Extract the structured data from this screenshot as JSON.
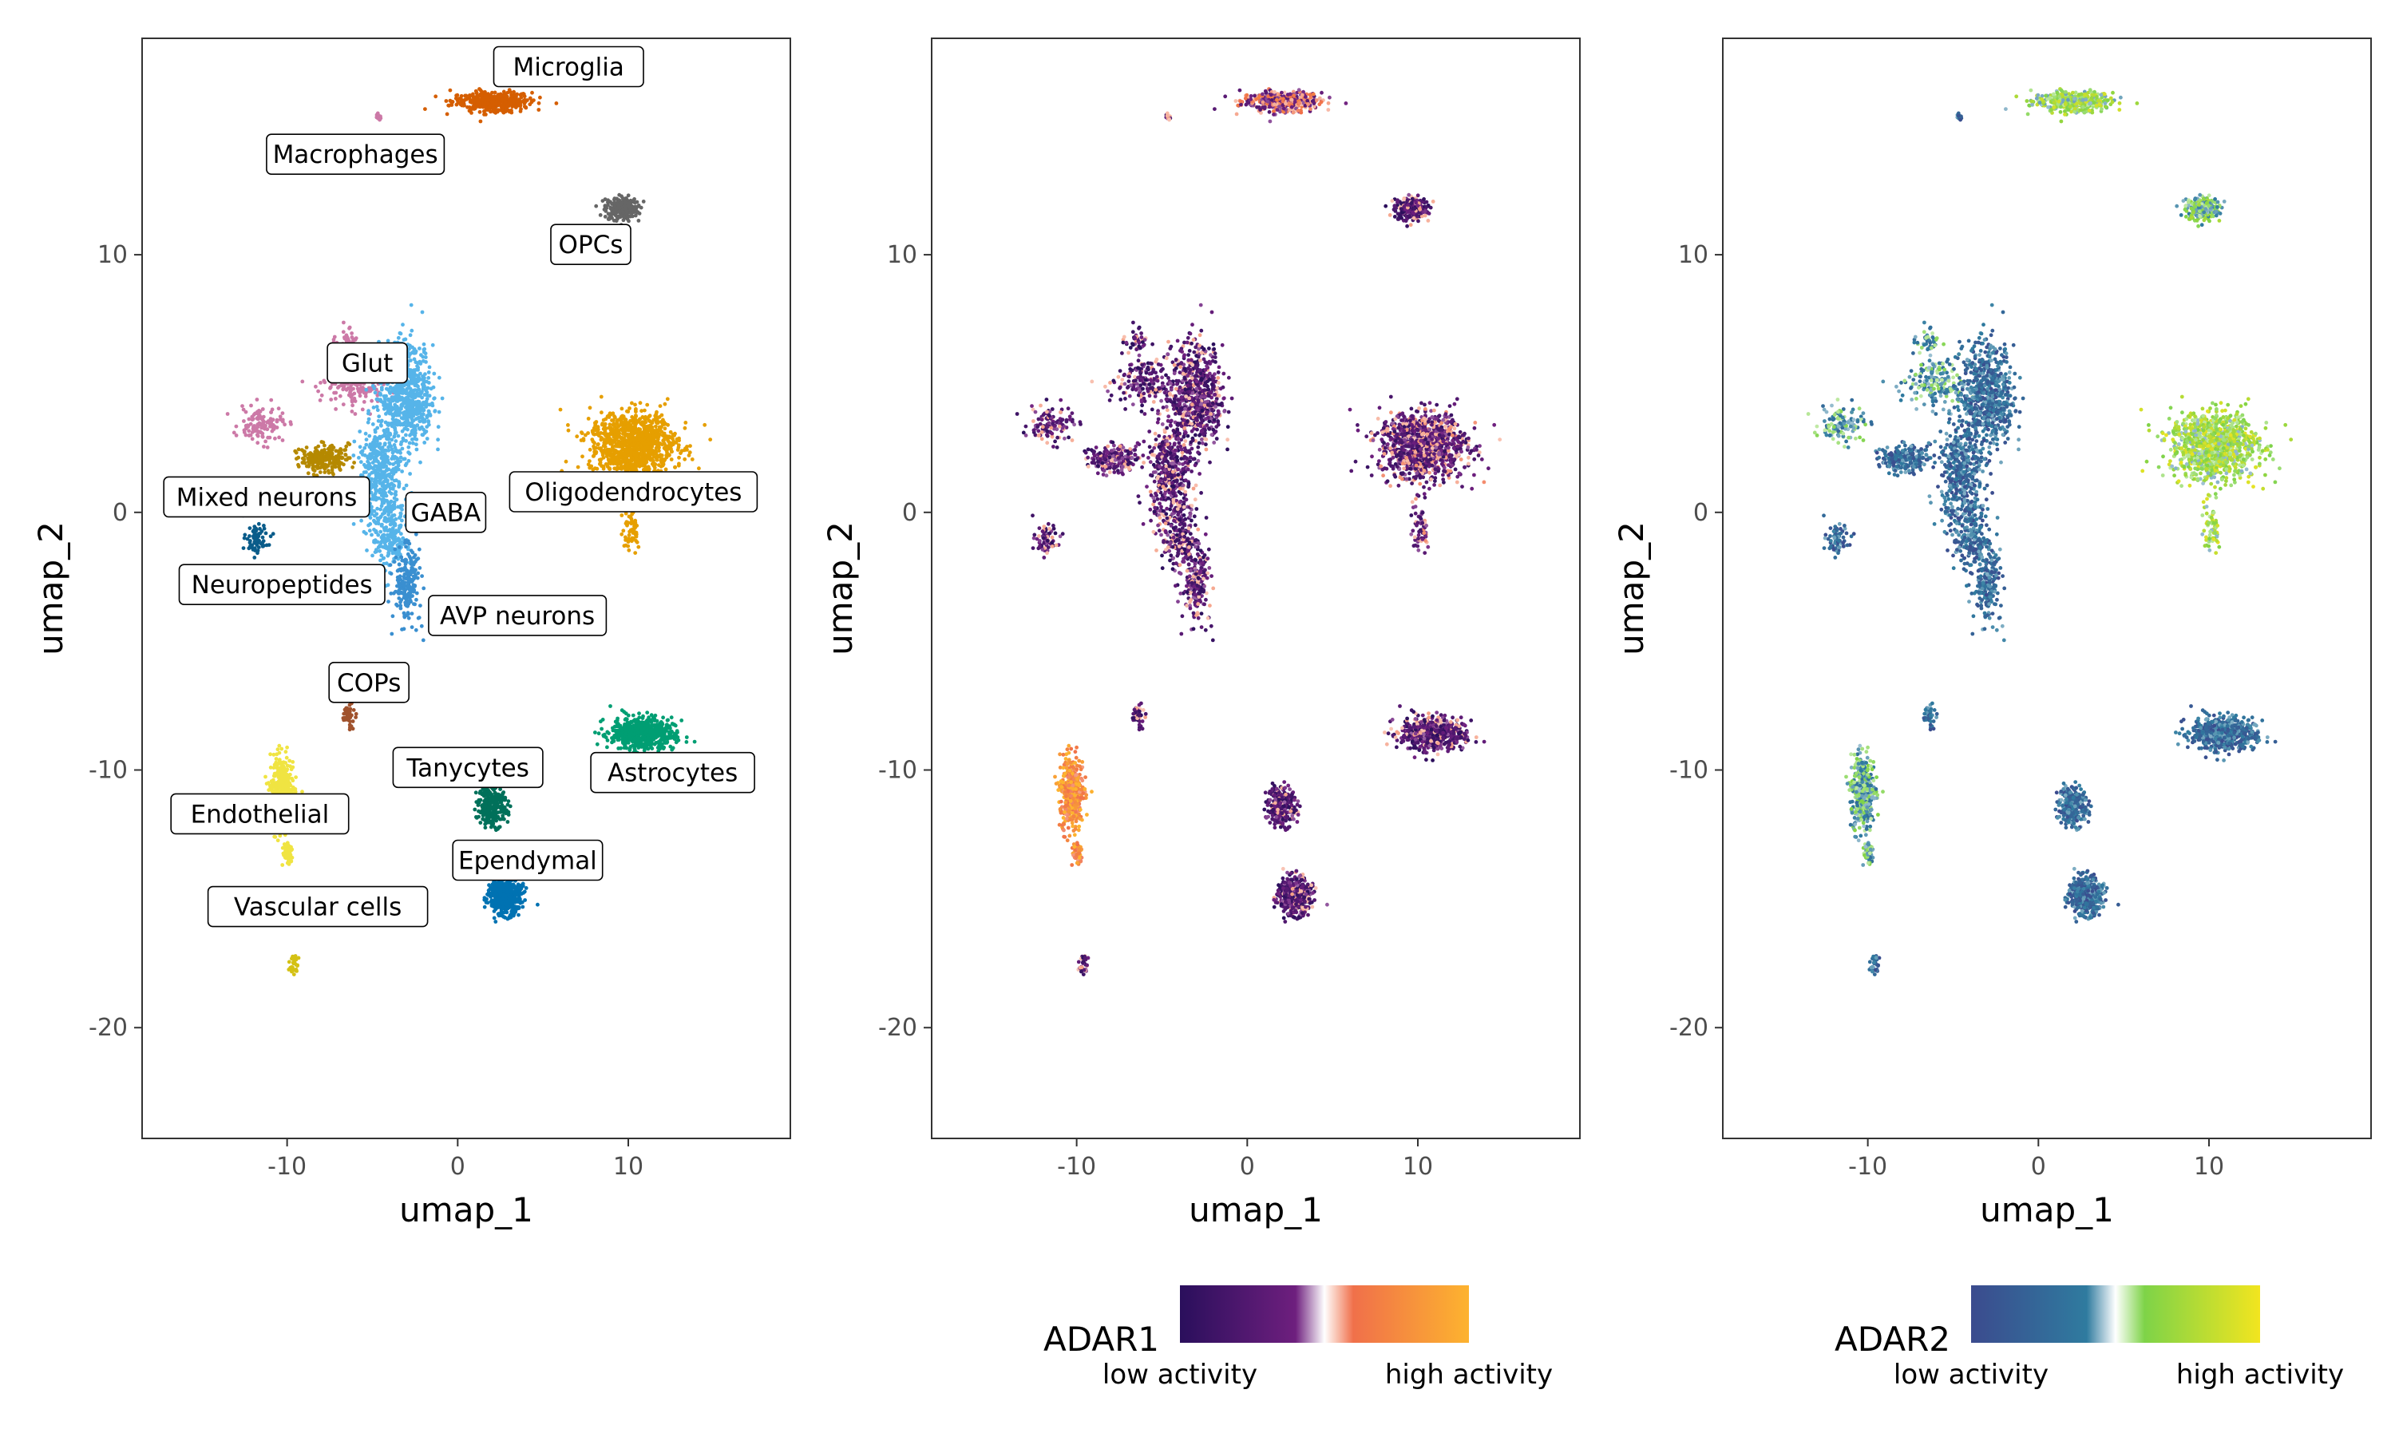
{
  "chart_data": [
    {
      "type": "scatter",
      "panel": "clusters",
      "xlabel": "umap_1",
      "ylabel": "umap_2",
      "xlim": [
        -18.5,
        19.5
      ],
      "ylim": [
        -24.3,
        18.4
      ],
      "xticks": [
        -10,
        0,
        10
      ],
      "yticks": [
        -20,
        -10,
        0,
        10
      ],
      "grid": false,
      "clusters": [
        {
          "name": "Microglia",
          "color": "#d55e00",
          "label_pos": [
            6.5,
            17.3
          ],
          "blobs": [
            [
              2,
              15.95,
              2.1,
              0.35,
              400
            ]
          ]
        },
        {
          "name": "Macrophages",
          "color": "#cc79a7",
          "label_pos": [
            -6,
            13.9
          ],
          "blobs": [
            [
              -4.6,
              15.3,
              0.15,
              0.2,
              15
            ]
          ]
        },
        {
          "name": "OPCs",
          "color": "#666666",
          "label_pos": [
            7.8,
            10.4
          ],
          "blobs": [
            [
              9.6,
              11.8,
              0.9,
              0.4,
              260
            ]
          ]
        },
        {
          "name": "Glut",
          "color": "#cc79a7",
          "label_pos": [
            -5.3,
            5.8
          ],
          "blobs": [
            [
              -6,
              5,
              1.5,
              0.9,
              180
            ],
            [
              -11.5,
              3.4,
              1.2,
              0.6,
              120
            ],
            [
              -6.5,
              6.6,
              0.6,
              0.5,
              40
            ]
          ]
        },
        {
          "name": "GABA",
          "color": "#56b4e9",
          "label_pos": [
            -0.7,
            0
          ],
          "blobs": [
            [
              -3,
              4.5,
              1.4,
              1.8,
              700
            ],
            [
              -4.5,
              1.5,
              1.2,
              1.8,
              420
            ],
            [
              -4,
              -1,
              0.9,
              1.2,
              200
            ]
          ]
        },
        {
          "name": "Mixed neurons",
          "color": "#b58900",
          "label_pos": [
            -11.2,
            0.6
          ],
          "blobs": [
            [
              -7.8,
              2.1,
              1.3,
              0.45,
              220
            ]
          ]
        },
        {
          "name": "Oligodendrocytes",
          "color": "#e69f00",
          "label_pos": [
            10.3,
            0.8
          ],
          "blobs": [
            [
              10.3,
              2.6,
              2.3,
              1.2,
              1100
            ],
            [
              10.1,
              -0.6,
              0.6,
              0.9,
              60
            ]
          ]
        },
        {
          "name": "Neuropeptides",
          "color": "#0a5c8a",
          "label_pos": [
            -10.3,
            -2.8
          ],
          "blobs": [
            [
              -11.8,
              -1,
              0.6,
              0.5,
              70
            ]
          ]
        },
        {
          "name": "AVP neurons",
          "color": "#3a8fd0",
          "label_pos": [
            3.5,
            -4
          ],
          "blobs": [
            [
              -3,
              -2.8,
              0.7,
              1.3,
              220
            ]
          ]
        },
        {
          "name": "COPs",
          "color": "#a0522d",
          "label_pos": [
            -5.2,
            -6.6
          ],
          "blobs": [
            [
              -6.4,
              -7.9,
              0.3,
              0.4,
              40
            ]
          ]
        },
        {
          "name": "Tanycytes",
          "color": "#00705a",
          "label_pos": [
            0.6,
            -9.9
          ],
          "blobs": [
            [
              2,
              -11.4,
              0.8,
              0.7,
              260
            ]
          ]
        },
        {
          "name": "Astrocytes",
          "color": "#009e73",
          "label_pos": [
            12.6,
            -10.1
          ],
          "blobs": [
            [
              10.8,
              -8.6,
              1.7,
              0.55,
              650
            ]
          ]
        },
        {
          "name": "Endothelial",
          "color": "#f0e442",
          "label_pos": [
            -11.6,
            -11.7
          ],
          "blobs": [
            [
              -10.3,
              -10.9,
              0.6,
              1.3,
              420
            ],
            [
              -10,
              -13.2,
              0.3,
              0.5,
              60
            ]
          ]
        },
        {
          "name": "Ependymal",
          "color": "#0072b2",
          "label_pos": [
            4.1,
            -13.5
          ],
          "blobs": [
            [
              2.8,
              -14.9,
              0.8,
              0.65,
              550
            ]
          ]
        },
        {
          "name": "Vascular cells",
          "color": "#d4c114",
          "label_pos": [
            -8.2,
            -15.3
          ],
          "blobs": [
            [
              -9.6,
              -17.6,
              0.2,
              0.4,
              35
            ]
          ]
        }
      ]
    },
    {
      "type": "scatter",
      "panel": "ADAR1",
      "xlabel": "umap_1",
      "ylabel": "umap_2",
      "xlim": [
        -18.5,
        19.5
      ],
      "ylim": [
        -24.3,
        18.4
      ],
      "xticks": [
        -10,
        0,
        10
      ],
      "yticks": [
        -20,
        -10,
        0,
        10
      ],
      "grid": false,
      "color_scale": [
        "#2a0f5c",
        "#6e1f7e",
        "#ffffff",
        "#f0704a",
        "#fdb32f"
      ],
      "legend": {
        "title": "ADAR1",
        "low": "low activity",
        "high": "high activity",
        "position": "bottom"
      }
    },
    {
      "type": "scatter",
      "panel": "ADAR2",
      "xlabel": "umap_1",
      "ylabel": "umap_2",
      "xlim": [
        -18.5,
        19.5
      ],
      "ylim": [
        -24.3,
        18.4
      ],
      "xticks": [
        -10,
        0,
        10
      ],
      "yticks": [
        -20,
        -10,
        0,
        10
      ],
      "grid": false,
      "color_scale": [
        "#3b4b8e",
        "#2f7b9f",
        "#ffffff",
        "#7ed348",
        "#f2e51f"
      ],
      "legend": {
        "title": "ADAR2",
        "low": "low activity",
        "high": "high activity",
        "position": "bottom"
      }
    }
  ]
}
